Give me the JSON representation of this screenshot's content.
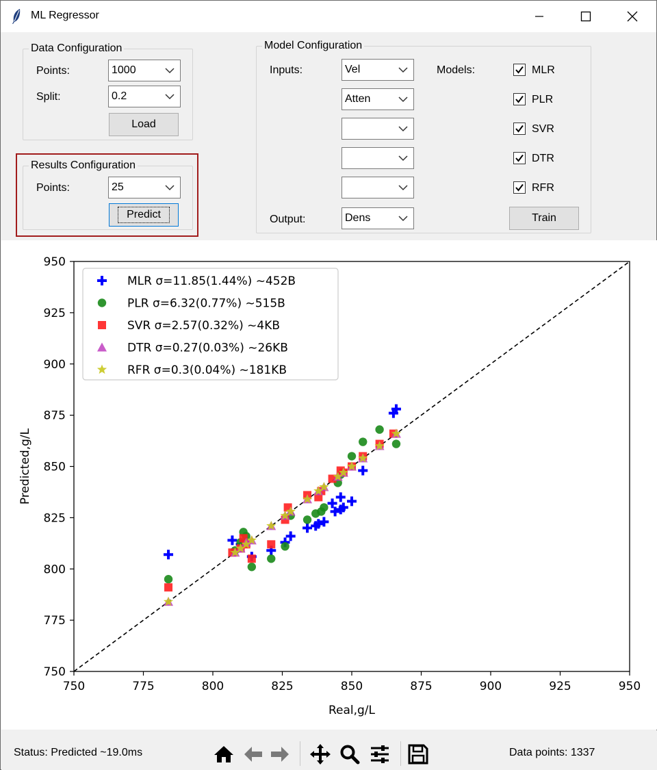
{
  "window": {
    "title": "ML Regressor",
    "icons": {
      "app": "feather-icon",
      "minimize": "minimize-icon",
      "maximize": "maximize-icon",
      "close": "close-icon"
    }
  },
  "data_config": {
    "legend": "Data Configuration",
    "points_label": "Points:",
    "points_value": "1000",
    "split_label": "Split:",
    "split_value": "0.2",
    "load_label": "Load"
  },
  "results_config": {
    "legend": "Results Configuration",
    "points_label": "Points:",
    "points_value": "25",
    "predict_label": "Predict"
  },
  "model_config": {
    "legend": "Model Configuration",
    "inputs_label": "Inputs:",
    "inputs": [
      "Vel",
      "Atten",
      "",
      "",
      ""
    ],
    "output_label": "Output:",
    "output_value": "Dens",
    "models_label": "Models:",
    "models": [
      {
        "name": "MLR",
        "checked": true
      },
      {
        "name": "PLR",
        "checked": true
      },
      {
        "name": "SVR",
        "checked": true
      },
      {
        "name": "DTR",
        "checked": true
      },
      {
        "name": "RFR",
        "checked": true
      }
    ],
    "train_label": "Train"
  },
  "status": {
    "text": "Status: Predicted ~19.0ms",
    "data_points": "Data points: 1337",
    "toolbar_icons": [
      "home-icon",
      "back-arrow-icon",
      "forward-arrow-icon",
      "pan-icon",
      "zoom-icon",
      "configure-icon",
      "save-icon"
    ]
  },
  "chart_data": {
    "type": "scatter",
    "title": "",
    "xlabel": "Real,g/L",
    "ylabel": "Predicted,g/L",
    "xlim": [
      750,
      950
    ],
    "ylim": [
      750,
      950
    ],
    "xticks": [
      750,
      775,
      800,
      825,
      850,
      875,
      900,
      925,
      950
    ],
    "yticks": [
      750,
      775,
      800,
      825,
      850,
      875,
      900,
      925,
      950
    ],
    "grid": false,
    "legend_position": "top-left",
    "reference_line": "y = x (dashed)",
    "series": [
      {
        "name": "MLR σ=11.85(1.44%) ~452B",
        "marker": "plus",
        "color": "#0000ff",
        "points": [
          [
            784,
            807
          ],
          [
            807,
            814
          ],
          [
            810,
            812
          ],
          [
            812,
            813
          ],
          [
            814,
            806
          ],
          [
            821,
            809
          ],
          [
            826,
            813
          ],
          [
            828,
            816
          ],
          [
            834,
            820
          ],
          [
            837,
            821
          ],
          [
            838,
            822
          ],
          [
            840,
            823
          ],
          [
            843,
            832
          ],
          [
            844,
            828
          ],
          [
            846,
            835
          ],
          [
            846,
            829
          ],
          [
            847,
            830
          ],
          [
            850,
            833
          ],
          [
            854,
            848
          ],
          [
            865,
            876
          ],
          [
            866,
            878
          ]
        ]
      },
      {
        "name": "PLR σ=6.32(0.77%) ~515B",
        "marker": "circle",
        "color": "#1a8a1a",
        "points": [
          [
            784,
            795
          ],
          [
            808,
            809
          ],
          [
            810,
            813
          ],
          [
            811,
            818
          ],
          [
            812,
            816
          ],
          [
            814,
            801
          ],
          [
            821,
            805
          ],
          [
            826,
            811
          ],
          [
            828,
            826
          ],
          [
            834,
            824
          ],
          [
            837,
            827
          ],
          [
            839,
            828
          ],
          [
            840,
            830
          ],
          [
            845,
            842
          ],
          [
            846,
            846
          ],
          [
            850,
            855
          ],
          [
            854,
            862
          ],
          [
            860,
            868
          ],
          [
            866,
            861
          ]
        ]
      },
      {
        "name": "SVR σ=2.57(0.32%) ~4KB",
        "marker": "square",
        "color": "#ff2020",
        "points": [
          [
            784,
            791
          ],
          [
            807,
            808
          ],
          [
            810,
            810
          ],
          [
            811,
            815
          ],
          [
            812,
            812
          ],
          [
            814,
            805
          ],
          [
            821,
            812
          ],
          [
            826,
            824
          ],
          [
            827,
            830
          ],
          [
            834,
            836
          ],
          [
            838,
            835
          ],
          [
            839,
            838
          ],
          [
            843,
            844
          ],
          [
            846,
            848
          ],
          [
            847,
            847
          ],
          [
            850,
            850
          ],
          [
            854,
            855
          ],
          [
            860,
            861
          ],
          [
            865,
            866
          ]
        ]
      },
      {
        "name": "DTR σ=0.27(0.03%) ~26KB",
        "marker": "triangle",
        "color": "#c040c0",
        "points": [
          [
            784,
            784
          ],
          [
            808,
            808
          ],
          [
            810,
            810
          ],
          [
            812,
            813
          ],
          [
            814,
            814
          ],
          [
            821,
            821
          ],
          [
            826,
            826
          ],
          [
            828,
            828
          ],
          [
            834,
            834
          ],
          [
            838,
            838
          ],
          [
            840,
            840
          ],
          [
            845,
            845
          ],
          [
            847,
            847
          ],
          [
            850,
            850
          ],
          [
            854,
            854
          ],
          [
            860,
            860
          ],
          [
            866,
            866
          ]
        ]
      },
      {
        "name": "RFR σ=0.3(0.04%) ~181KB",
        "marker": "star",
        "color": "#c8c81e",
        "points": [
          [
            784,
            784
          ],
          [
            808,
            808
          ],
          [
            810,
            810
          ],
          [
            812,
            812
          ],
          [
            814,
            814
          ],
          [
            821,
            821
          ],
          [
            826,
            826
          ],
          [
            828,
            828
          ],
          [
            834,
            834
          ],
          [
            838,
            838
          ],
          [
            840,
            840
          ],
          [
            845,
            845
          ],
          [
            847,
            847
          ],
          [
            850,
            850
          ],
          [
            854,
            854
          ],
          [
            860,
            860
          ],
          [
            866,
            866
          ]
        ]
      }
    ]
  }
}
